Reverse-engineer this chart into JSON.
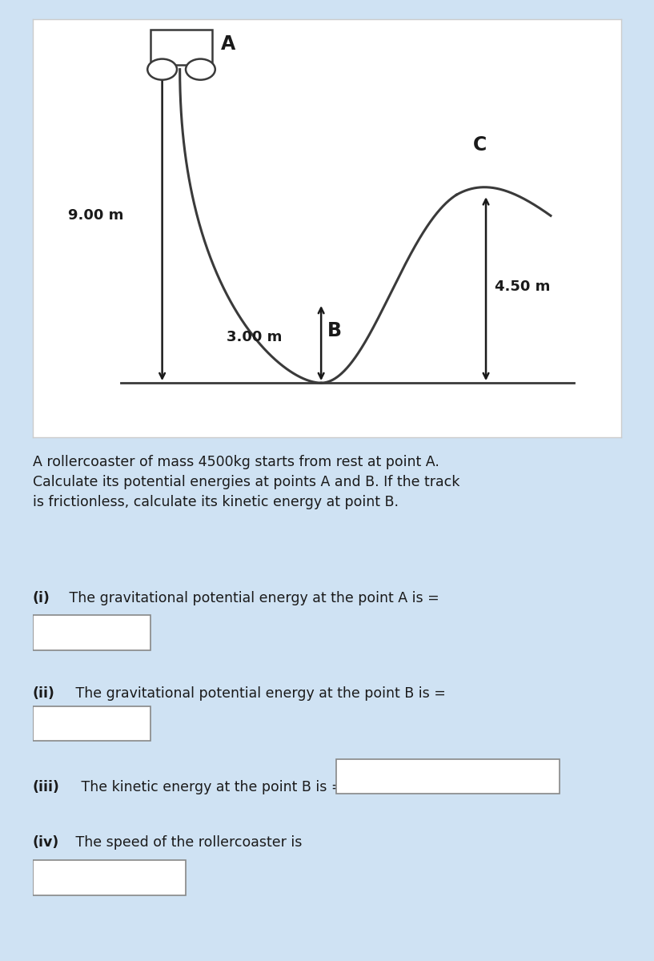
{
  "bg_color": "#cfe2f3",
  "diagram_bg": "#ffffff",
  "text_color": "#1a1a1a",
  "title_text": "A rollercoaster of mass 4500kg starts from rest at point A.\nCalculate its potential energies at points A and B. If the track\nis frictionless, calculate its kinetic energy at point B.",
  "q1": "(i)  The gravitational potential energy at the point A is =",
  "q2": "(ii)  The gravitational potential energy at the point B is =",
  "q3": "(iii)  The kinetic energy at the point B is =",
  "q4": "(iv)  The speed of the rollercoaster is",
  "label_A": "A",
  "label_B": "B",
  "label_C": "C",
  "height_A": "9.00 m",
  "height_B": "3.00 m",
  "height_C": "4.50 m",
  "arrow_color": "#1a1a1a",
  "track_color": "#3a3a3a",
  "box_border": "#888888",
  "box_fill": "#ffffff"
}
